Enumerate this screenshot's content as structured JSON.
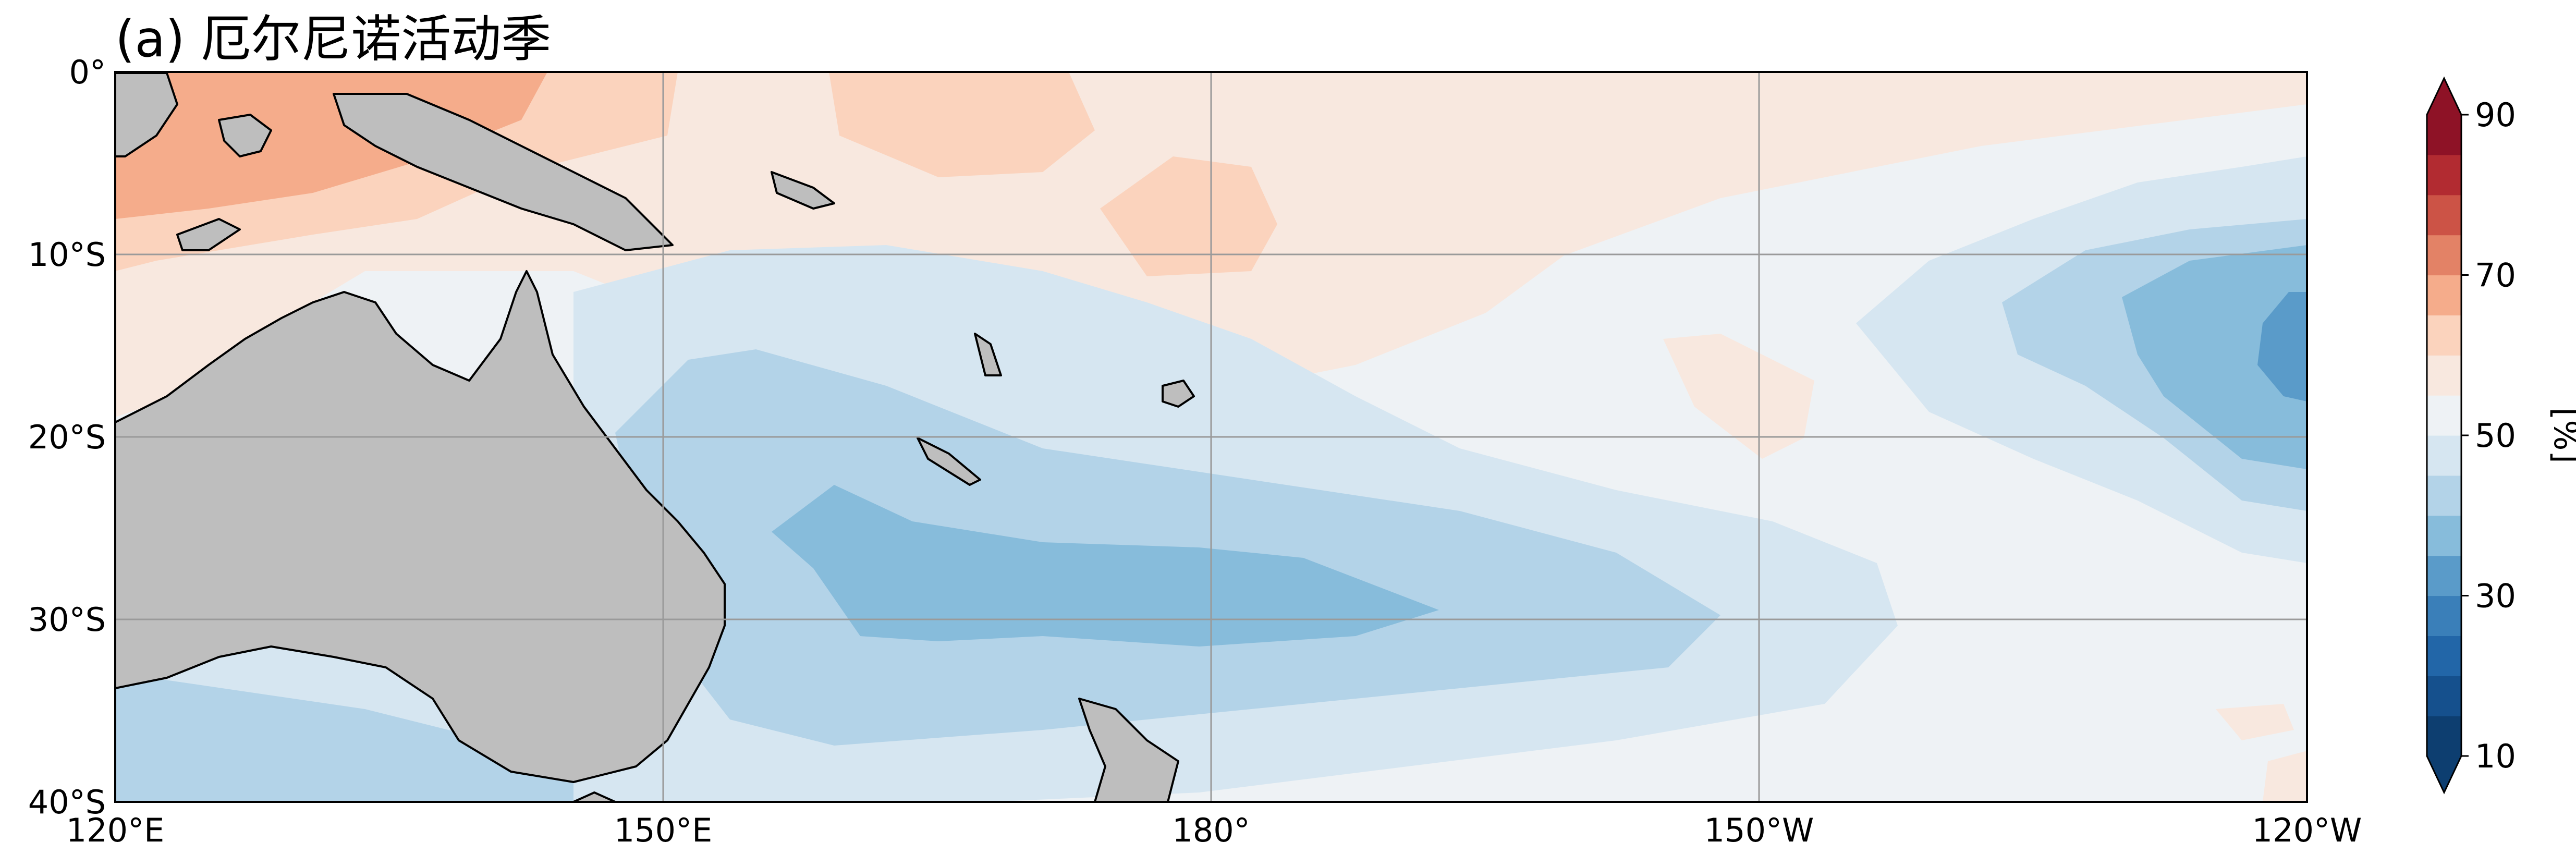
{
  "title": "(a) 厄尔尼诺活动季",
  "map": {
    "extent": {
      "lon_west": 120,
      "lon_east": 240,
      "lat_north": 0,
      "lat_south": -40
    },
    "grid": true,
    "land_color": "#bebebe",
    "coast_color": "#000000"
  },
  "axes": {
    "xticks": [
      "120°E",
      "150°E",
      "180°",
      "150°W",
      "120°W"
    ],
    "yticks": [
      "0°",
      "10°S",
      "20°S",
      "30°S",
      "40°S"
    ]
  },
  "colorbar": {
    "label": "[%]",
    "ticks": [
      "90",
      "70",
      "50",
      "30",
      "10"
    ],
    "range": [
      10,
      90
    ],
    "extend": "both",
    "colormap": "RdBu_r",
    "levels": [
      {
        "from": 10,
        "to": 15,
        "color": "#0d3e70"
      },
      {
        "from": 15,
        "to": 20,
        "color": "#15508d"
      },
      {
        "from": 20,
        "to": 25,
        "color": "#2266a8"
      },
      {
        "from": 25,
        "to": 30,
        "color": "#3a7fb9"
      },
      {
        "from": 30,
        "to": 35,
        "color": "#5a9bc9"
      },
      {
        "from": 35,
        "to": 40,
        "color": "#87bcdb"
      },
      {
        "from": 40,
        "to": 45,
        "color": "#b3d3e8"
      },
      {
        "from": 45,
        "to": 50,
        "color": "#d6e6f1"
      },
      {
        "from": 50,
        "to": 55,
        "color": "#eef2f5"
      },
      {
        "from": 55,
        "to": 60,
        "color": "#f8e8df"
      },
      {
        "from": 60,
        "to": 65,
        "color": "#fbd3bd"
      },
      {
        "from": 65,
        "to": 70,
        "color": "#f5ac8b"
      },
      {
        "from": 70,
        "to": 75,
        "color": "#e38266"
      },
      {
        "from": 75,
        "to": 80,
        "color": "#cc5346"
      },
      {
        "from": 80,
        "to": 85,
        "color": "#b22b31"
      },
      {
        "from": 85,
        "to": 90,
        "color": "#8e1226"
      }
    ]
  }
}
